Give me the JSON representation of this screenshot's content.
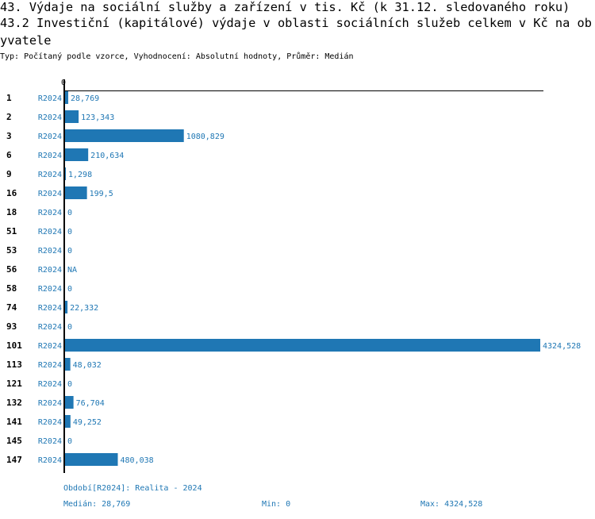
{
  "header": {
    "title_line1": "43. Výdaje na sociální služby a zařízení v tis. Kč (k 31.12. sledovaného roku)",
    "title_line2": "43.2 Investiční (kapitálové) výdaje v oblasti sociálních služeb celkem v Kč na ob",
    "title_line3": "yvatele",
    "subtitle": "Typ: Počítaný podle vzorce, Vyhodnocení: Absolutní hodnoty, Průměr: Medián"
  },
  "colors": {
    "bar": "#1f77b4",
    "text_blue": "#1f77b4",
    "axis": "#000000"
  },
  "chart_data": {
    "type": "bar",
    "orientation": "horizontal",
    "axis_tick_label": "0",
    "xlim": [
      0,
      4324.528
    ],
    "categories": [
      "1",
      "2",
      "3",
      "6",
      "9",
      "16",
      "18",
      "51",
      "53",
      "56",
      "58",
      "74",
      "93",
      "101",
      "113",
      "121",
      "132",
      "141",
      "145",
      "147"
    ],
    "series": [
      {
        "name": "R2024",
        "values": [
          28.769,
          123.343,
          1080.829,
          210.634,
          1.298,
          199.5,
          0,
          0,
          0,
          null,
          0,
          22.332,
          0,
          4324.528,
          48.032,
          0,
          76.704,
          49.252,
          0,
          480.038
        ],
        "labels": [
          "28,769",
          "123,343",
          "1080,829",
          "210,634",
          "1,298",
          "199,5",
          "0",
          "0",
          "0",
          "NA",
          "0",
          "22,332",
          "0",
          "4324,528",
          "48,032",
          "0",
          "76,704",
          "49,252",
          "0",
          "480,038"
        ]
      }
    ]
  },
  "footer": {
    "period": "Období[R2024]: Realita - 2024",
    "median": "Medián: 28,769",
    "min": "Min: 0",
    "max": "Max: 4324,528"
  }
}
